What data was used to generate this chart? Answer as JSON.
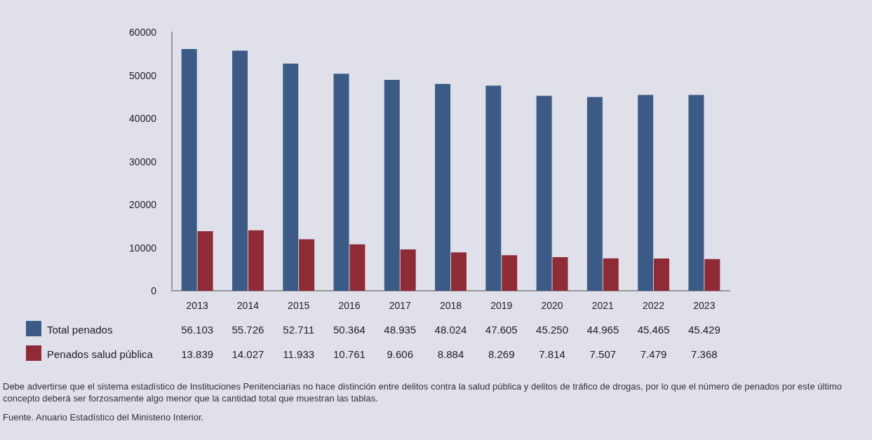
{
  "chart_data": {
    "type": "bar",
    "categories": [
      "2013",
      "2014",
      "2015",
      "2016",
      "2017",
      "2018",
      "2019",
      "2020",
      "2021",
      "2022",
      "2023"
    ],
    "series": [
      {
        "name": "Total penados",
        "color": "#3b5b86",
        "values": [
          56103,
          55726,
          52711,
          50364,
          48935,
          48024,
          47605,
          45250,
          44965,
          45465,
          45429
        ],
        "value_labels": [
          "56.103",
          "55.726",
          "52.711",
          "50.364",
          "48.935",
          "48.024",
          "47.605",
          "45.250",
          "44.965",
          "45.465",
          "45.429"
        ]
      },
      {
        "name": "Penados salud pública",
        "color": "#8f2a37",
        "values": [
          13839,
          14027,
          11933,
          10761,
          9606,
          8884,
          8269,
          7814,
          7507,
          7479,
          7368
        ],
        "value_labels": [
          "13.839",
          "14.027",
          "11.933",
          "10.761",
          "9.606",
          "8.884",
          "8.269",
          "7.814",
          "7.507",
          "7.479",
          "7.368"
        ]
      }
    ],
    "ylim": [
      0,
      60000
    ],
    "yticks": [
      0,
      10000,
      20000,
      30000,
      40000,
      50000,
      60000
    ],
    "grid": false,
    "legend": "bottom left",
    "annotations": [
      "Debe advertirse que el sistema estadístico de Instituciones Penitenciarias no hace distinción entre delitos contra la salud pública y delitos de tráfico de drogas, por lo que el número de penados por este último concepto deberá ser forzosamente algo menor que la cantidad total que muestran las tablas.",
      "Fuente. Anuario Estadístico del Ministerio Interior."
    ]
  }
}
